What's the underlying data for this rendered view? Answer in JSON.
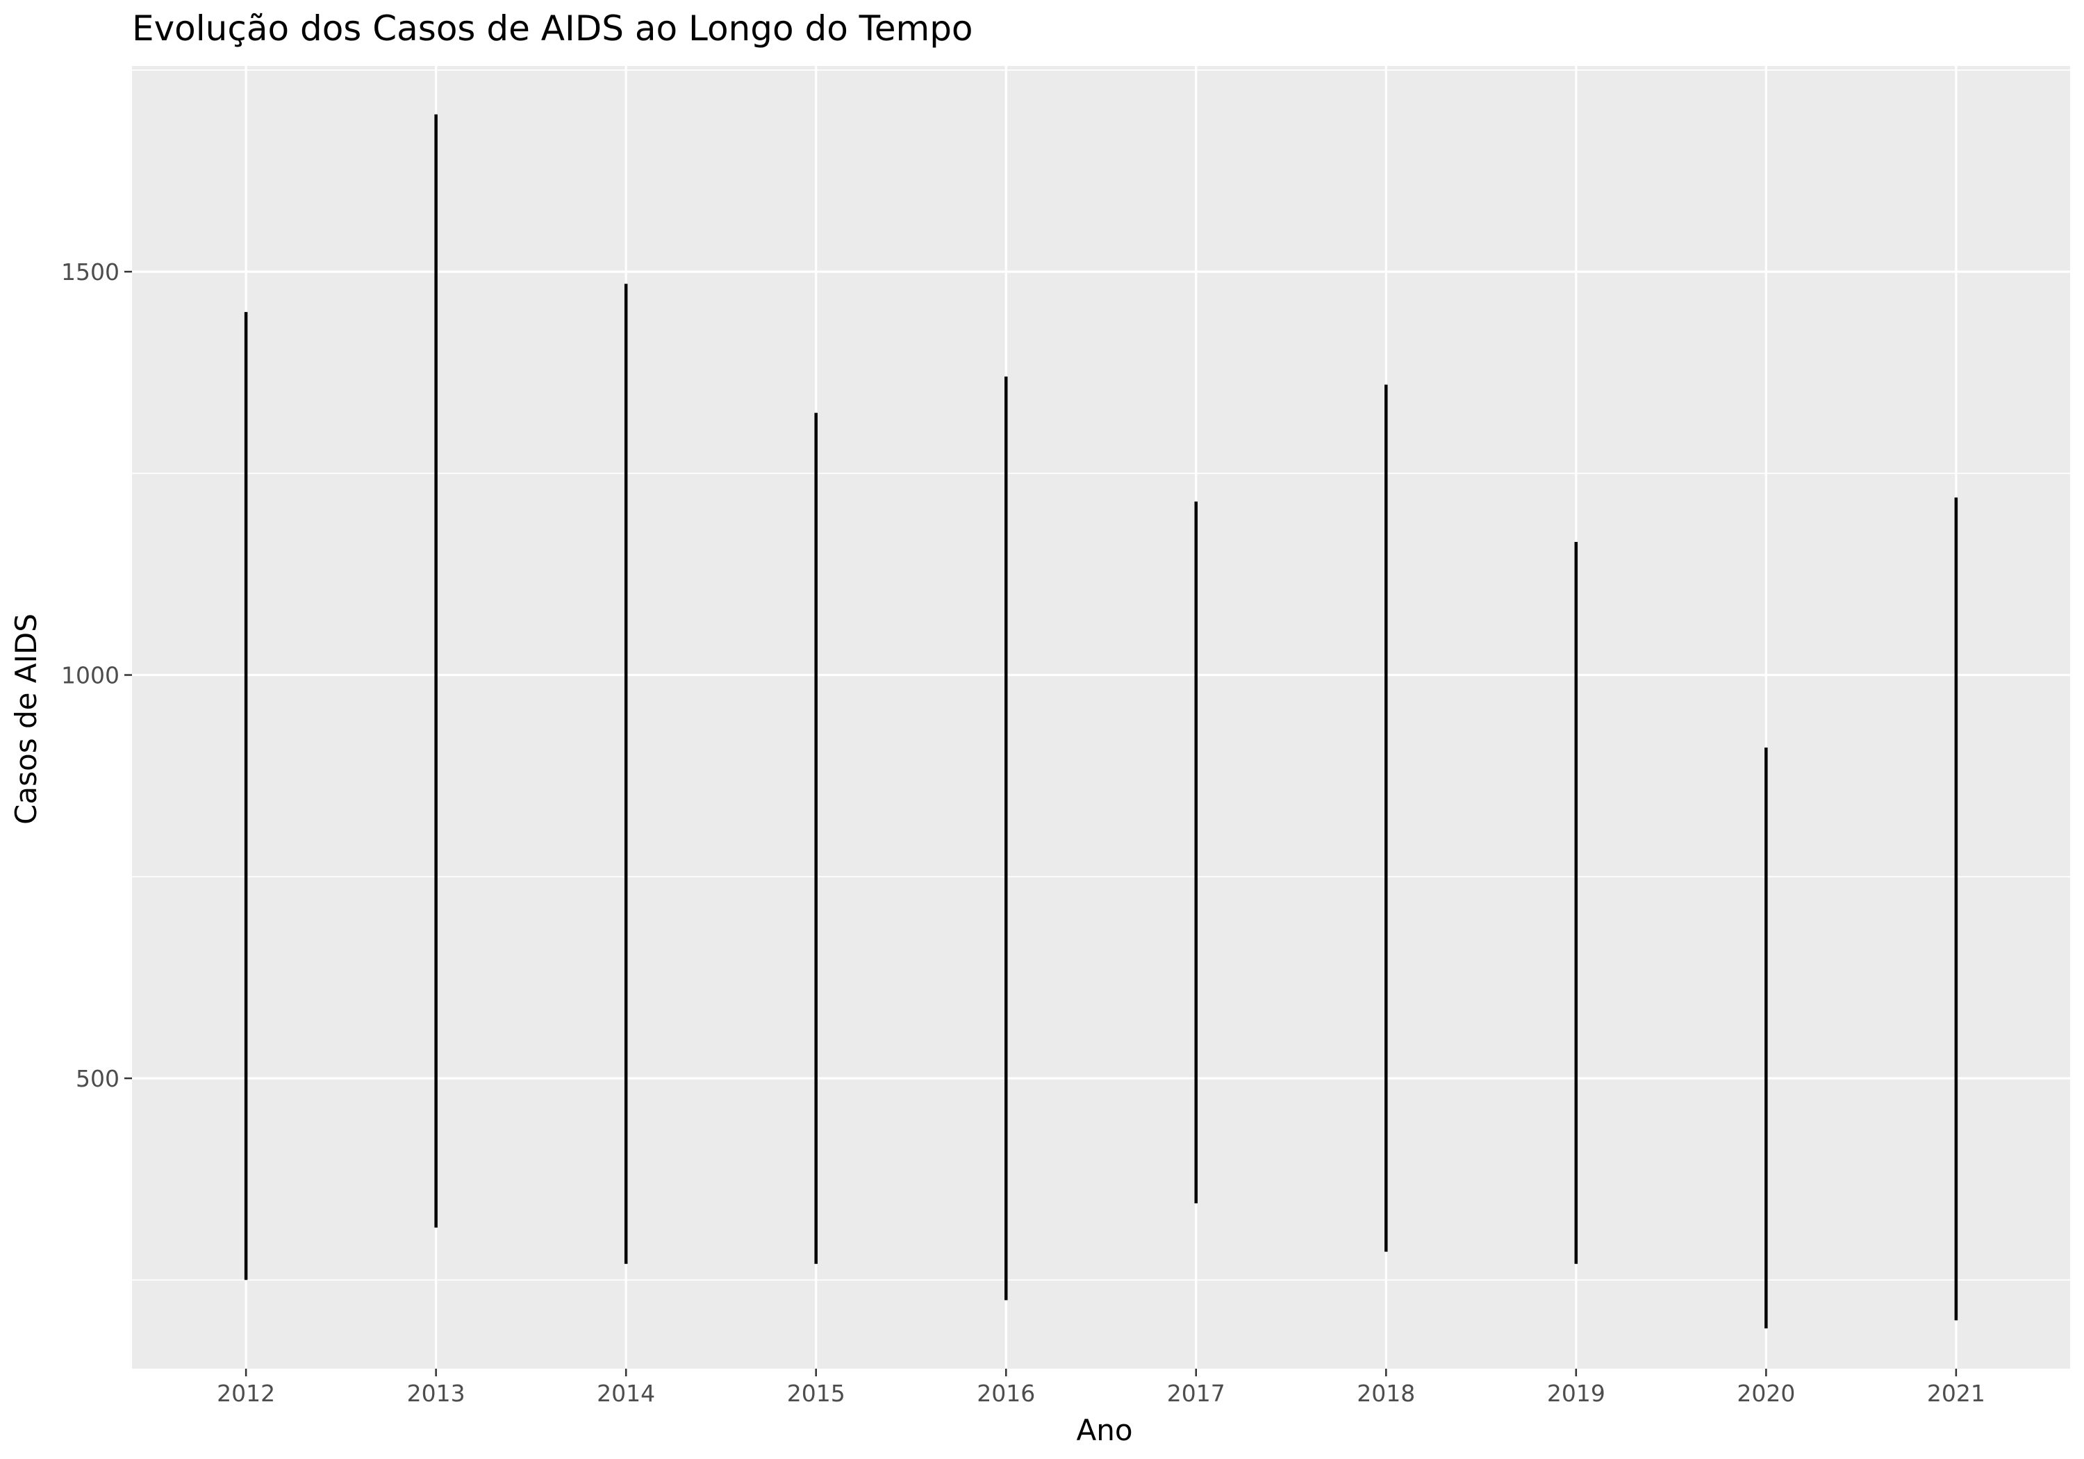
{
  "chart_data": {
    "type": "line",
    "title": "Evolução dos Casos de AIDS ao Longo do Tempo",
    "xlabel": "Ano",
    "ylabel": "Casos de AIDS",
    "x_ticks": [
      "2012",
      "2013",
      "2014",
      "2015",
      "2016",
      "2017",
      "2018",
      "2019",
      "2020",
      "2021"
    ],
    "y_ticks": [
      "500",
      "1000",
      "1500"
    ],
    "y_tick_values": [
      500,
      1000,
      1500
    ],
    "xlim": [
      2011.4,
      2021.6
    ],
    "ylim": [
      140,
      1755
    ],
    "grid": true,
    "legend": "none",
    "series": [
      {
        "values": [
          {
            "x": 2012,
            "min": 250,
            "max": 1450
          },
          {
            "x": 2013,
            "min": 315,
            "max": 1695
          },
          {
            "x": 2014,
            "min": 270,
            "max": 1485
          },
          {
            "x": 2015,
            "min": 270,
            "max": 1325
          },
          {
            "x": 2016,
            "min": 225,
            "max": 1370
          },
          {
            "x": 2017,
            "min": 345,
            "max": 1215
          },
          {
            "x": 2018,
            "min": 285,
            "max": 1360
          },
          {
            "x": 2019,
            "min": 270,
            "max": 1165
          },
          {
            "x": 2020,
            "min": 190,
            "max": 910
          },
          {
            "x": 2021,
            "min": 200,
            "max": 1220
          }
        ]
      }
    ],
    "colors": {
      "panel": "#ebebeb",
      "grid": "#ffffff",
      "line": "#000000",
      "tick": "#333333"
    }
  }
}
